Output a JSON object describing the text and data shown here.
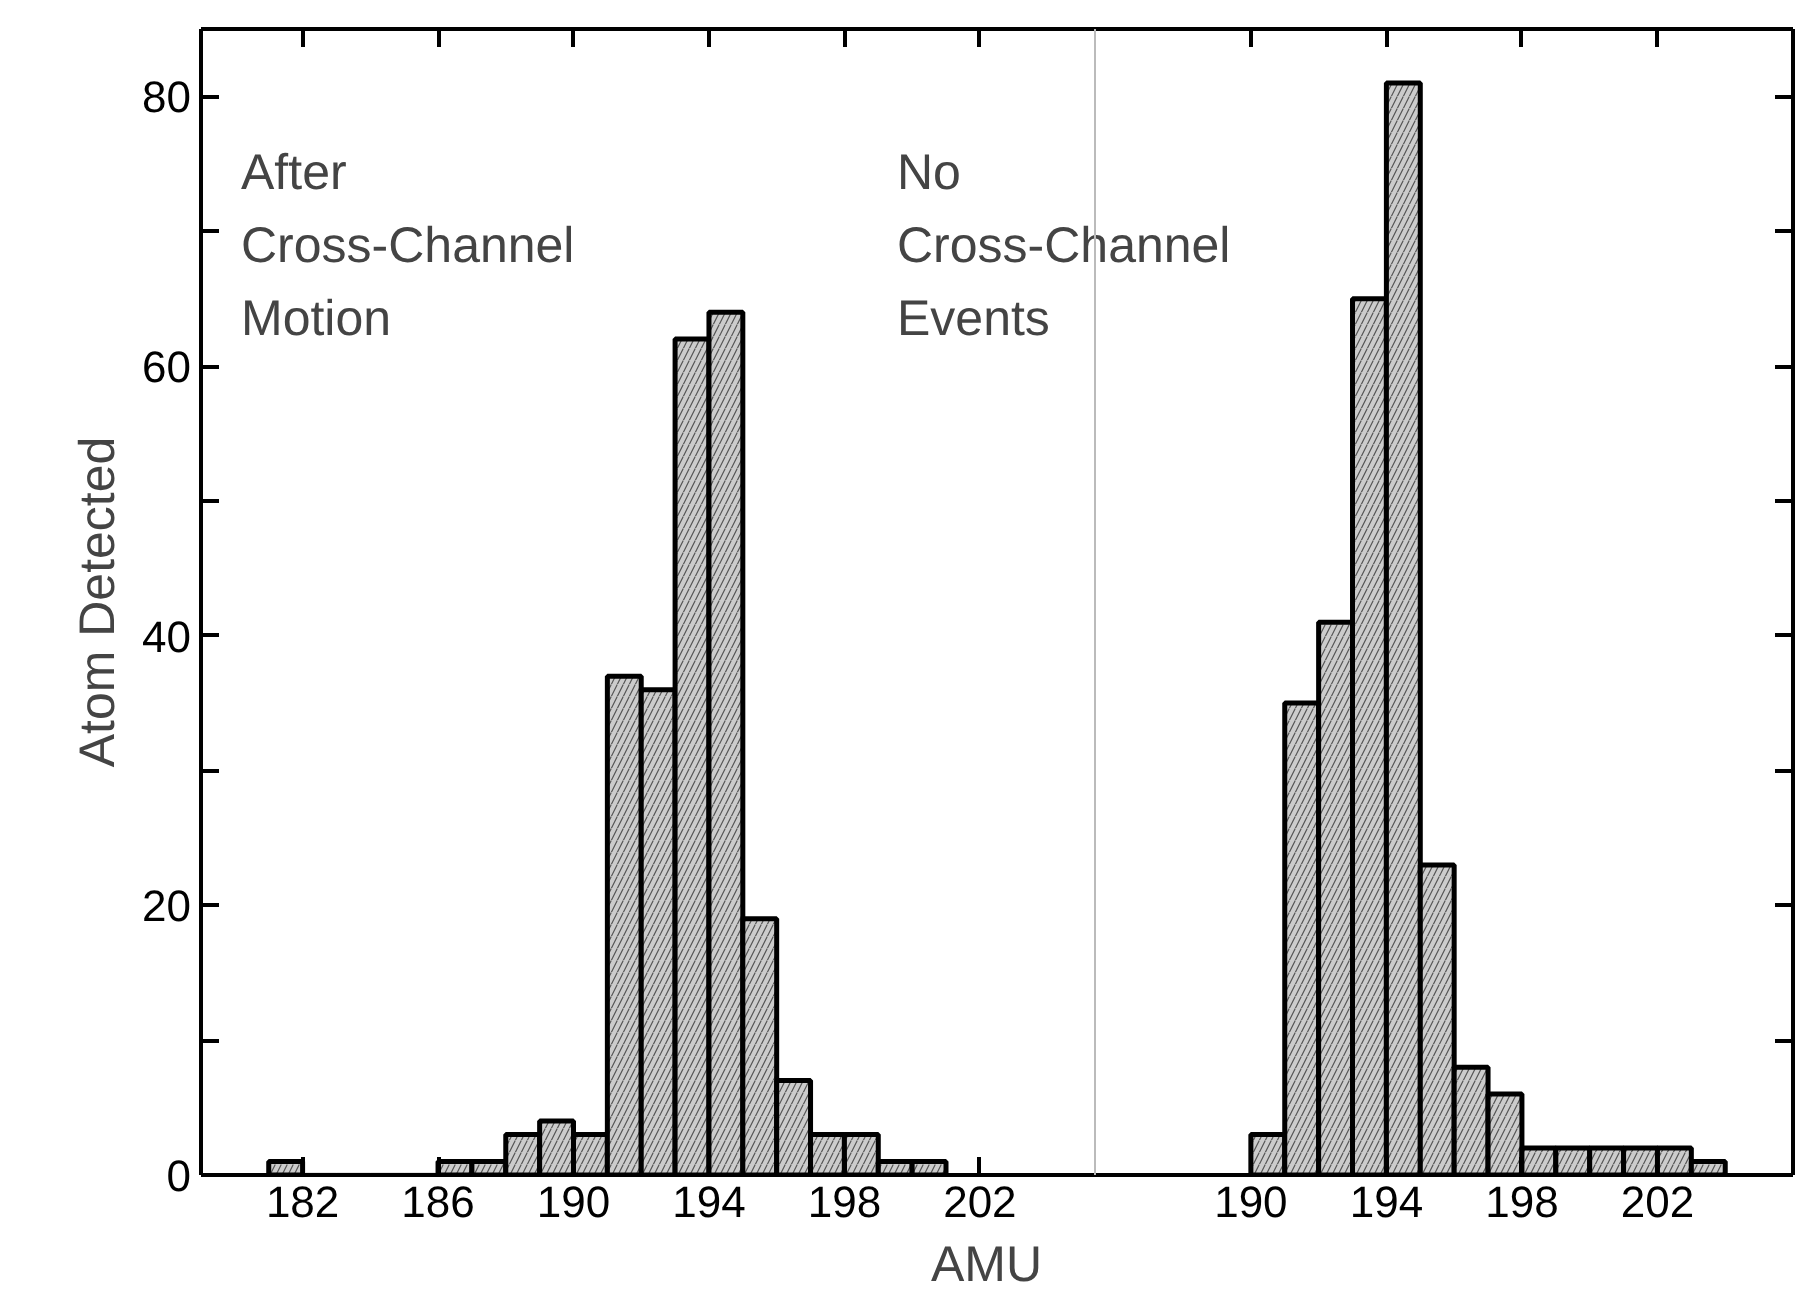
{
  "chart_data": [
    {
      "type": "histogram",
      "ylabel": "Atom Detected",
      "xlabel": "AMU",
      "color": "#cccccc",
      "bins": [
        181,
        182,
        183,
        184,
        185,
        186,
        187,
        188,
        189,
        190,
        191,
        192,
        193,
        194,
        195,
        196,
        197,
        198,
        199,
        200,
        201
      ],
      "values": [
        1,
        0,
        0,
        0,
        0,
        1,
        1,
        3,
        4,
        3,
        37,
        36,
        62,
        64,
        19,
        7,
        3,
        3,
        1,
        1
      ],
      "xlim": [
        179,
        205.4
      ],
      "xticks": [
        182,
        186,
        190,
        194,
        198,
        202
      ],
      "ylim": [
        0,
        85
      ],
      "yticks": [
        0,
        {
          "value": 10,
          "label": null
        },
        20,
        {
          "value": 30,
          "label": null
        },
        40,
        {
          "value": 50,
          "label": null
        },
        60,
        {
          "value": 70,
          "label": null
        },
        80
      ],
      "annotations": [
        "After\nCross-Channel\nMotion",
        "No\nCross-Channel\nEvents"
      ]
    },
    {
      "type": "histogram",
      "color": "#cccccc",
      "bins": [
        190,
        191,
        192,
        193,
        194,
        195,
        196,
        197,
        198,
        199,
        200,
        201,
        202,
        203,
        204
      ],
      "values": [
        3,
        35,
        41,
        65,
        81,
        23,
        8,
        6,
        2,
        2,
        2,
        2,
        2,
        1
      ],
      "xlim": [
        185.4,
        206
      ],
      "xticks": [
        190,
        194,
        198,
        202
      ],
      "ylim": [
        0,
        85
      ],
      "yticks": [
        0,
        {
          "value": 10,
          "label": null
        },
        20,
        {
          "value": 30,
          "label": null
        },
        40,
        {
          "value": 50,
          "label": null
        },
        60,
        {
          "value": 70,
          "label": null
        },
        80
      ],
      "tick_labels": "x"
    }
  ]
}
